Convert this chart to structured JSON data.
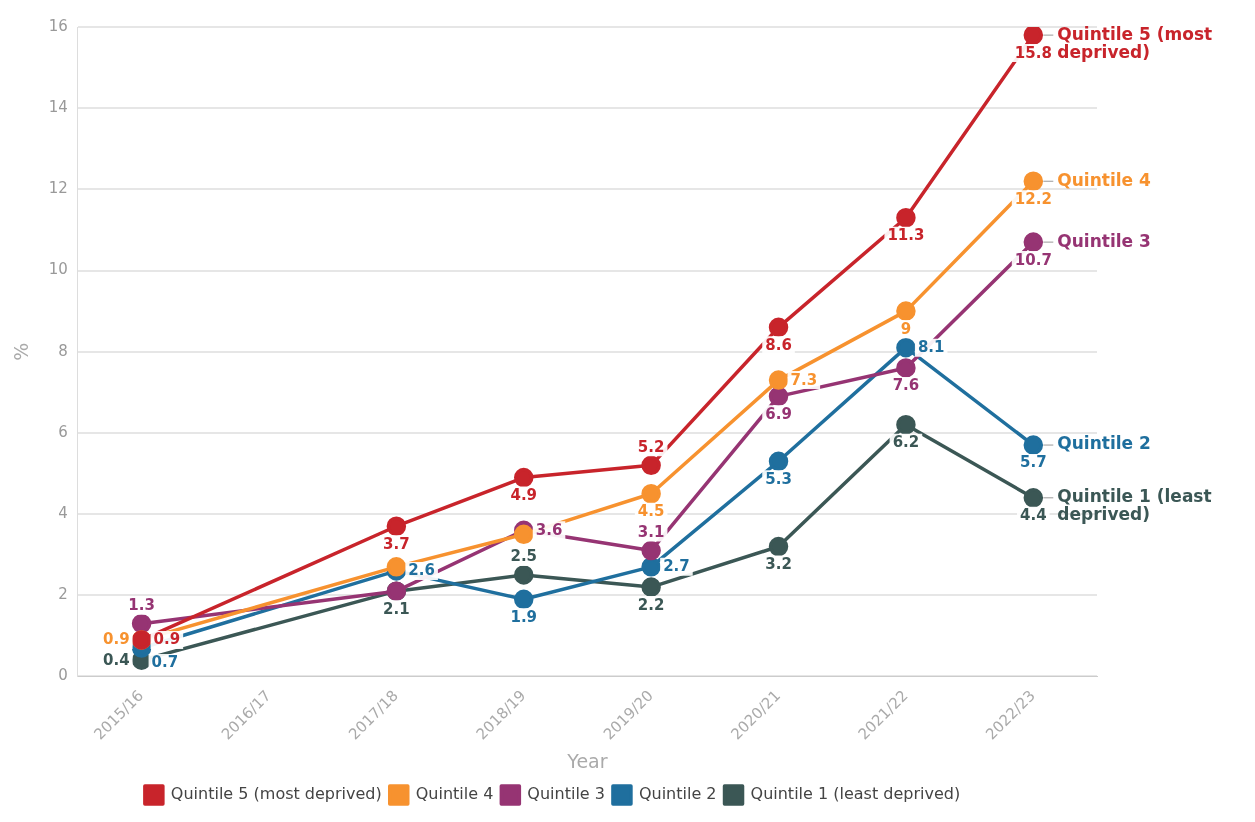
{
  "chart_data": {
    "type": "line",
    "xlabel": "Year",
    "ylabel": "%",
    "categories": [
      "2015/16",
      "2016/17",
      "2017/18",
      "2018/19",
      "2019/20",
      "2020/21",
      "2021/22",
      "2022/23"
    ],
    "ylim": [
      0,
      16
    ],
    "yticks": [
      0,
      2,
      4,
      6,
      8,
      10,
      12,
      14,
      16
    ],
    "grid": "y",
    "legend": "bottom",
    "marker": "circle",
    "series": [
      {
        "name": "Quintile 5 (most deprived)",
        "color": "#c8242b",
        "values": [
          0.9,
          null,
          3.7,
          4.9,
          5.2,
          8.6,
          11.3,
          15.8
        ],
        "value_labels": [
          "0.9",
          null,
          "3.7",
          "4.9",
          "5.2",
          "8.6",
          "11.3",
          "15.8"
        ]
      },
      {
        "name": "Quintile 4",
        "color": "#f7922f",
        "values": [
          0.9,
          null,
          2.7,
          3.5,
          4.5,
          7.3,
          9,
          12.2
        ],
        "value_labels": [
          "0.9",
          null,
          null,
          null,
          "4.5",
          "7.3",
          "9",
          "12.2"
        ]
      },
      {
        "name": "Quintile 3",
        "color": "#963473",
        "values": [
          1.3,
          null,
          2.1,
          3.6,
          3.1,
          6.9,
          7.6,
          10.7
        ],
        "value_labels": [
          "1.3",
          null,
          null,
          "3.6",
          "3.1",
          "6.9",
          "7.6",
          "10.7"
        ]
      },
      {
        "name": "Quintile 2",
        "color": "#1f6f9e",
        "values": [
          0.7,
          null,
          2.6,
          1.9,
          2.7,
          5.3,
          8.1,
          5.7
        ],
        "value_labels": [
          "0.7",
          null,
          "2.6",
          "1.9",
          "2.7",
          "5.3",
          "8.1",
          "5.7"
        ]
      },
      {
        "name": "Quintile 1 (least deprived)",
        "color": "#3b5755",
        "values": [
          0.4,
          null,
          2.1,
          2.5,
          2.2,
          3.2,
          6.2,
          4.4
        ],
        "value_labels": [
          "0.4",
          null,
          "2.1",
          "2.5",
          "2.2",
          "3.2",
          "6.2",
          "4.4"
        ]
      }
    ]
  }
}
